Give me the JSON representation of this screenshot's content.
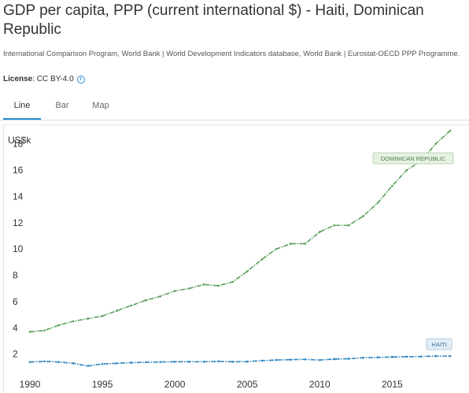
{
  "header": {
    "title": "GDP per capita, PPP (current international $) - Haiti, Dominican Republic",
    "source": "International Comparison Program, World Bank | World Development Indicators database, World Bank | Eurostat-OECD PPP Programme.",
    "license_label": "License",
    "license_value": ": CC BY-4.0",
    "info_icon": "info-icon"
  },
  "tabs": [
    {
      "label": "Line",
      "active": true
    },
    {
      "label": "Bar",
      "active": false
    },
    {
      "label": "Map",
      "active": false
    }
  ],
  "colors": {
    "dominican": "#5aa05a",
    "haiti": "#2e86c1",
    "tab_accent": "#2b8cd2"
  },
  "chart_data": {
    "type": "line",
    "ylabel": "US$k",
    "xlim": [
      1990,
      2019
    ],
    "ylim": [
      0,
      19
    ],
    "y_ticks": [
      2,
      4,
      6,
      8,
      10,
      12,
      14,
      16,
      18
    ],
    "x_ticks": [
      1990,
      1995,
      2000,
      2005,
      2010,
      2015
    ],
    "x": [
      1990,
      1991,
      1992,
      1993,
      1994,
      1995,
      1996,
      1997,
      1998,
      1999,
      2000,
      2001,
      2002,
      2003,
      2004,
      2005,
      2006,
      2007,
      2008,
      2009,
      2010,
      2011,
      2012,
      2013,
      2014,
      2015,
      2016,
      2017,
      2018,
      2019
    ],
    "series": [
      {
        "name": "DOMINICAN REPUBLIC",
        "color": "#5aa05a",
        "values": [
          3.7,
          3.8,
          4.2,
          4.5,
          4.7,
          4.9,
          5.3,
          5.7,
          6.1,
          6.4,
          6.8,
          7.0,
          7.3,
          7.2,
          7.5,
          8.3,
          9.2,
          10.0,
          10.4,
          10.4,
          11.3,
          11.8,
          11.8,
          12.5,
          13.5,
          14.8,
          16.0,
          16.7,
          18.0,
          19.0
        ]
      },
      {
        "name": "HAITI",
        "color": "#2e86c1",
        "values": [
          1.4,
          1.45,
          1.4,
          1.3,
          1.1,
          1.25,
          1.3,
          1.35,
          1.38,
          1.4,
          1.42,
          1.42,
          1.42,
          1.45,
          1.42,
          1.43,
          1.5,
          1.55,
          1.58,
          1.6,
          1.55,
          1.62,
          1.65,
          1.72,
          1.75,
          1.78,
          1.8,
          1.82,
          1.85,
          1.85
        ]
      }
    ]
  }
}
